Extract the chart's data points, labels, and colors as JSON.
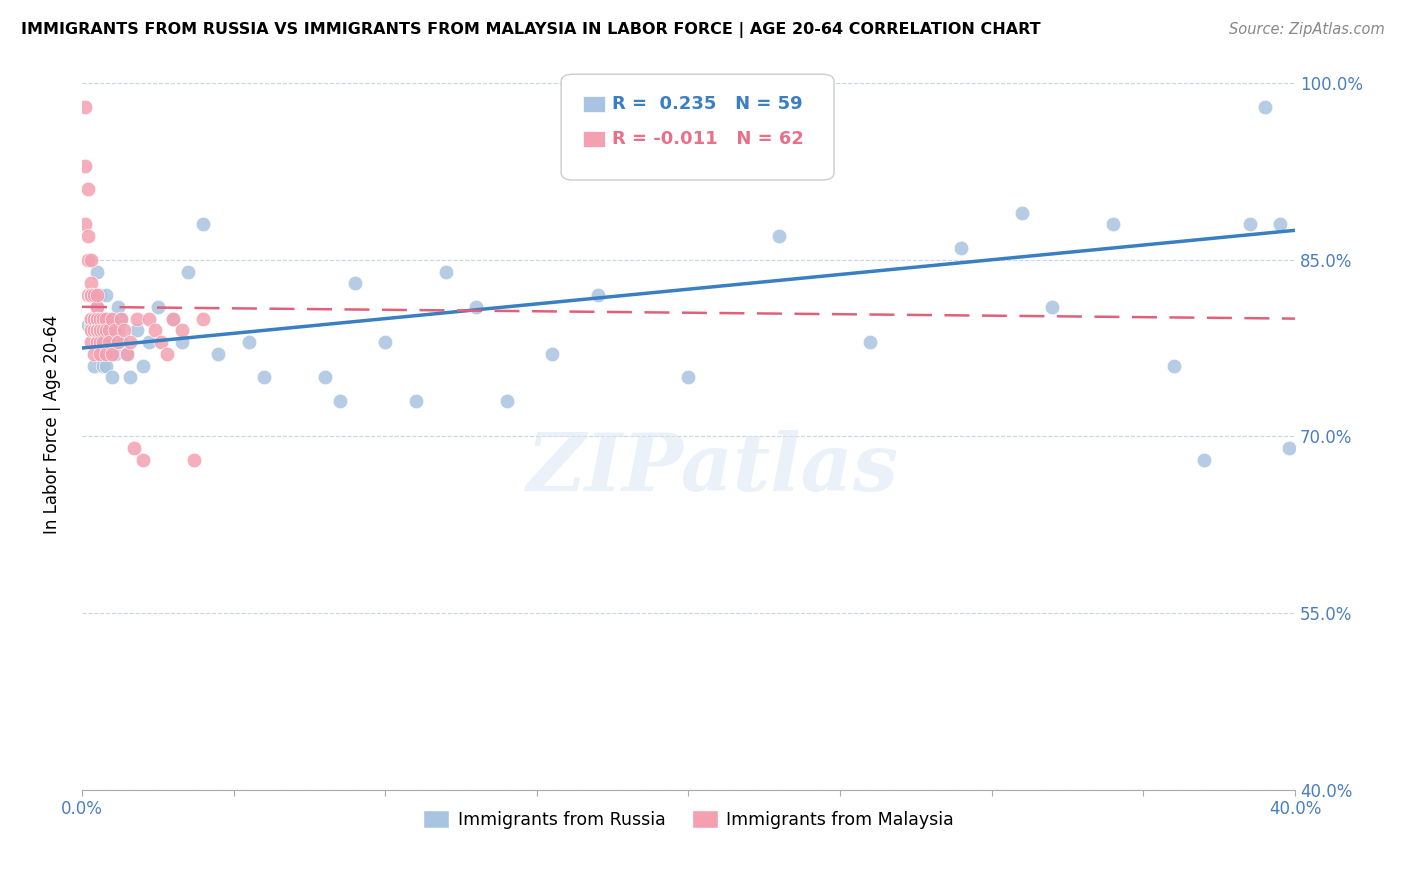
{
  "title": "IMMIGRANTS FROM RUSSIA VS IMMIGRANTS FROM MALAYSIA IN LABOR FORCE | AGE 20-64 CORRELATION CHART",
  "source": "Source: ZipAtlas.com",
  "xlabel": "",
  "ylabel": "In Labor Force | Age 20-64",
  "xlim": [
    0.0,
    0.4
  ],
  "ylim": [
    0.4,
    1.02
  ],
  "yticks": [
    0.4,
    0.55,
    0.7,
    0.85,
    1.0
  ],
  "ytick_labels": [
    "40.0%",
    "55.0%",
    "70.0%",
    "85.0%",
    "100.0%"
  ],
  "xticks": [
    0.0,
    0.05,
    0.1,
    0.15,
    0.2,
    0.25,
    0.3,
    0.35,
    0.4
  ],
  "xtick_labels": [
    "0.0%",
    "",
    "",
    "",
    "",
    "",
    "",
    "",
    "40.0%"
  ],
  "russia_color": "#a8c4e0",
  "malaysia_color": "#f4a0b0",
  "russia_R": 0.235,
  "russia_N": 59,
  "malaysia_R": -0.011,
  "malaysia_N": 62,
  "legend_russia": "Immigrants from Russia",
  "legend_malaysia": "Immigrants from Malaysia",
  "watermark": "ZIPatlas",
  "russia_trend_x": [
    0.0,
    0.4
  ],
  "russia_trend_y": [
    0.775,
    0.875
  ],
  "malaysia_trend_x": [
    0.0,
    0.4
  ],
  "malaysia_trend_y": [
    0.81,
    0.8
  ],
  "russia_x": [
    0.002,
    0.003,
    0.003,
    0.004,
    0.005,
    0.005,
    0.005,
    0.006,
    0.006,
    0.007,
    0.007,
    0.008,
    0.008,
    0.009,
    0.009,
    0.01,
    0.01,
    0.011,
    0.011,
    0.012,
    0.012,
    0.013,
    0.013,
    0.015,
    0.016,
    0.018,
    0.02,
    0.022,
    0.025,
    0.03,
    0.033,
    0.035,
    0.04,
    0.045,
    0.055,
    0.06,
    0.08,
    0.085,
    0.09,
    0.1,
    0.11,
    0.12,
    0.13,
    0.14,
    0.155,
    0.17,
    0.2,
    0.23,
    0.26,
    0.29,
    0.31,
    0.32,
    0.34,
    0.36,
    0.37,
    0.385,
    0.39,
    0.395,
    0.398
  ],
  "russia_y": [
    0.795,
    0.795,
    0.82,
    0.76,
    0.78,
    0.81,
    0.84,
    0.78,
    0.82,
    0.76,
    0.79,
    0.76,
    0.82,
    0.79,
    0.8,
    0.75,
    0.78,
    0.77,
    0.795,
    0.79,
    0.81,
    0.78,
    0.8,
    0.77,
    0.75,
    0.79,
    0.76,
    0.78,
    0.81,
    0.8,
    0.78,
    0.84,
    0.88,
    0.77,
    0.78,
    0.75,
    0.75,
    0.73,
    0.83,
    0.78,
    0.73,
    0.84,
    0.81,
    0.73,
    0.77,
    0.82,
    0.75,
    0.87,
    0.78,
    0.86,
    0.89,
    0.81,
    0.88,
    0.76,
    0.68,
    0.88,
    0.98,
    0.88,
    0.69
  ],
  "malaysia_x": [
    0.001,
    0.001,
    0.001,
    0.002,
    0.002,
    0.002,
    0.002,
    0.003,
    0.003,
    0.003,
    0.003,
    0.003,
    0.003,
    0.003,
    0.003,
    0.003,
    0.003,
    0.004,
    0.004,
    0.004,
    0.004,
    0.004,
    0.004,
    0.005,
    0.005,
    0.005,
    0.005,
    0.005,
    0.005,
    0.005,
    0.006,
    0.006,
    0.006,
    0.006,
    0.006,
    0.007,
    0.007,
    0.007,
    0.008,
    0.008,
    0.008,
    0.009,
    0.009,
    0.01,
    0.01,
    0.011,
    0.012,
    0.013,
    0.014,
    0.015,
    0.016,
    0.017,
    0.018,
    0.02,
    0.022,
    0.024,
    0.026,
    0.028,
    0.03,
    0.033,
    0.037,
    0.04
  ],
  "malaysia_y": [
    0.98,
    0.93,
    0.88,
    0.87,
    0.85,
    0.91,
    0.82,
    0.85,
    0.83,
    0.82,
    0.82,
    0.8,
    0.8,
    0.79,
    0.78,
    0.79,
    0.82,
    0.79,
    0.8,
    0.82,
    0.79,
    0.77,
    0.8,
    0.81,
    0.79,
    0.8,
    0.78,
    0.8,
    0.79,
    0.82,
    0.79,
    0.8,
    0.78,
    0.79,
    0.77,
    0.8,
    0.79,
    0.78,
    0.8,
    0.79,
    0.77,
    0.79,
    0.78,
    0.8,
    0.77,
    0.79,
    0.78,
    0.8,
    0.79,
    0.77,
    0.78,
    0.69,
    0.8,
    0.68,
    0.8,
    0.79,
    0.78,
    0.77,
    0.8,
    0.79,
    0.68,
    0.8
  ]
}
